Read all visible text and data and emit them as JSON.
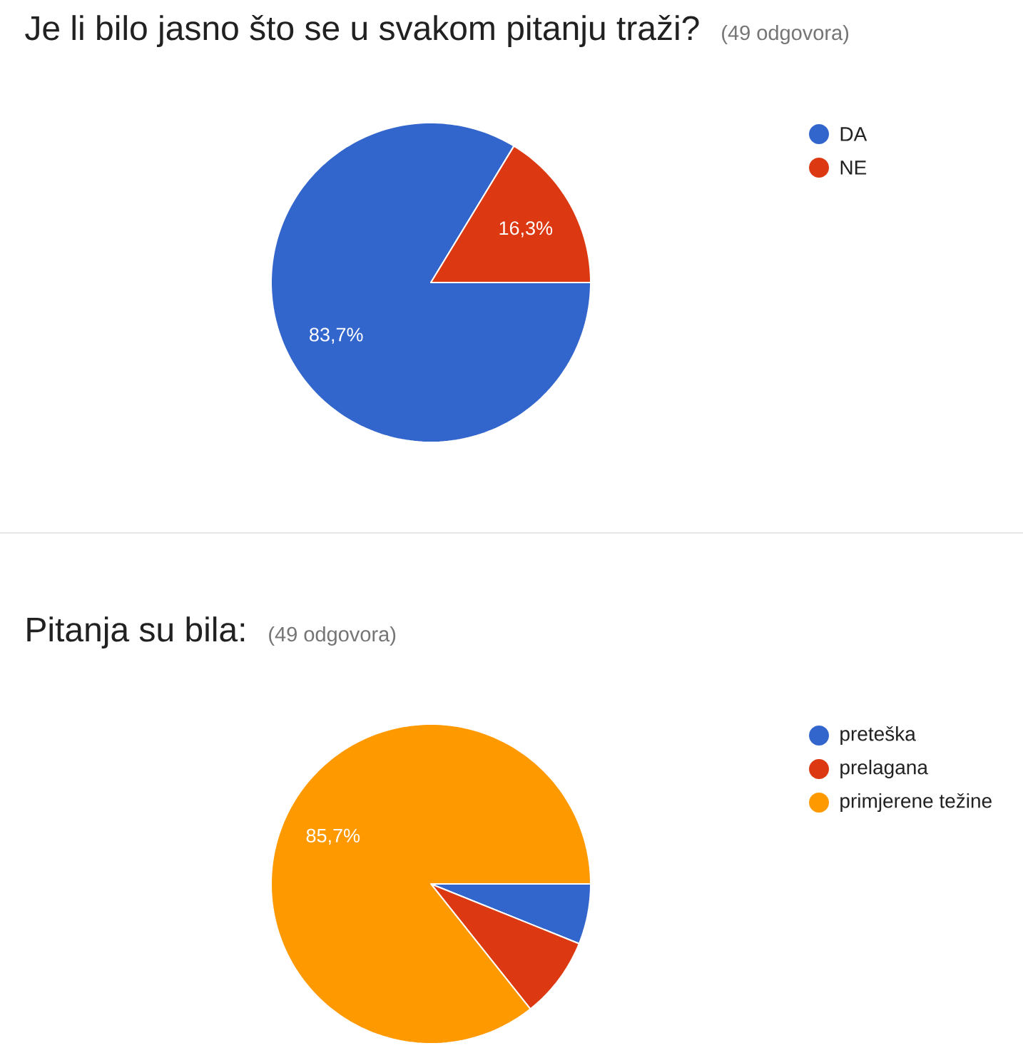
{
  "chart_data": [
    {
      "type": "pie",
      "title": "Je li bilo jasno što se u svakom pitanju traži?",
      "subtitle": "(49 odgovora)",
      "categories": [
        "DA",
        "NE"
      ],
      "values": [
        83.7,
        16.3
      ],
      "colors": [
        "#3366cc",
        "#dc3912"
      ],
      "value_labels": [
        "83,7%",
        "16,3%"
      ],
      "legend": "right"
    },
    {
      "type": "pie",
      "title": "Pitanja su bila:",
      "subtitle": "(49 odgovora)",
      "categories": [
        "preteška",
        "prelagana",
        "primjerene težine"
      ],
      "values": [
        6.1,
        8.2,
        85.7
      ],
      "colors": [
        "#3366cc",
        "#dc3912",
        "#ff9900"
      ],
      "value_labels": [
        null,
        null,
        "85,7%"
      ],
      "legend": "right"
    }
  ]
}
